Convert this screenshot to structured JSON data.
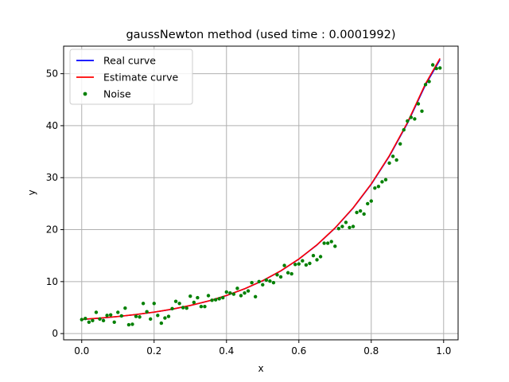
{
  "chart_data": {
    "type": "line",
    "title": "gaussNewton method (used time : 0.0001992)",
    "xlabel": "x",
    "ylabel": "y",
    "xlim": [
      -0.05,
      1.04
    ],
    "ylim": [
      -1.2,
      55.3
    ],
    "xticks": [
      0.0,
      0.2,
      0.4,
      0.6,
      0.8,
      1.0
    ],
    "xtick_labels": [
      "0.0",
      "0.2",
      "0.4",
      "0.6",
      "0.8",
      "1.0"
    ],
    "yticks": [
      0,
      10,
      20,
      30,
      40,
      50
    ],
    "ytick_labels": [
      "0",
      "10",
      "20",
      "30",
      "40",
      "50"
    ],
    "grid": true,
    "legend_position": "top-left",
    "series": [
      {
        "name": "Real curve",
        "kind": "line",
        "color": "#0000ff",
        "x": [
          0.0,
          0.05,
          0.1,
          0.15,
          0.2,
          0.25,
          0.3,
          0.35,
          0.4,
          0.45,
          0.5,
          0.55,
          0.6,
          0.65,
          0.7,
          0.75,
          0.8,
          0.85,
          0.9,
          0.95,
          0.99
        ],
        "y": [
          2.72,
          2.97,
          3.28,
          3.66,
          4.12,
          4.69,
          5.4,
          6.26,
          7.32,
          8.61,
          10.17,
          12.06,
          14.33,
          17.05,
          20.29,
          24.15,
          28.73,
          34.12,
          40.45,
          47.87,
          52.69
        ]
      },
      {
        "name": "Estimate curve",
        "kind": "line",
        "color": "#ff0000",
        "x": [
          0.0,
          0.05,
          0.1,
          0.15,
          0.2,
          0.25,
          0.3,
          0.35,
          0.4,
          0.45,
          0.5,
          0.55,
          0.6,
          0.65,
          0.7,
          0.75,
          0.8,
          0.85,
          0.9,
          0.95,
          0.99
        ],
        "y": [
          2.73,
          2.98,
          3.29,
          3.67,
          4.13,
          4.7,
          5.41,
          6.27,
          7.33,
          8.62,
          10.18,
          12.08,
          14.35,
          17.08,
          20.33,
          24.2,
          28.8,
          34.22,
          40.6,
          48.08,
          52.95
        ]
      },
      {
        "name": "Noise",
        "kind": "scatter",
        "color": "#008000",
        "x": [
          0.0,
          0.01,
          0.02,
          0.03,
          0.04,
          0.05,
          0.06,
          0.07,
          0.08,
          0.09,
          0.1,
          0.11,
          0.12,
          0.13,
          0.14,
          0.15,
          0.16,
          0.17,
          0.18,
          0.19,
          0.2,
          0.21,
          0.22,
          0.23,
          0.24,
          0.25,
          0.26,
          0.27,
          0.28,
          0.29,
          0.3,
          0.31,
          0.32,
          0.33,
          0.34,
          0.35,
          0.36,
          0.37,
          0.38,
          0.39,
          0.4,
          0.41,
          0.42,
          0.43,
          0.44,
          0.45,
          0.46,
          0.47,
          0.48,
          0.49,
          0.5,
          0.51,
          0.52,
          0.53,
          0.54,
          0.55,
          0.56,
          0.57,
          0.58,
          0.59,
          0.6,
          0.61,
          0.62,
          0.63,
          0.64,
          0.65,
          0.66,
          0.67,
          0.68,
          0.69,
          0.7,
          0.71,
          0.72,
          0.73,
          0.74,
          0.75,
          0.76,
          0.77,
          0.78,
          0.79,
          0.8,
          0.81,
          0.82,
          0.83,
          0.84,
          0.85,
          0.86,
          0.87,
          0.88,
          0.89,
          0.9,
          0.91,
          0.92,
          0.93,
          0.94,
          0.95,
          0.96,
          0.97,
          0.98,
          0.99
        ],
        "y": [
          2.7,
          2.9,
          2.2,
          2.5,
          4.1,
          2.8,
          2.5,
          3.5,
          3.6,
          2.2,
          4.1,
          3.4,
          4.9,
          1.7,
          1.8,
          3.3,
          3.2,
          5.8,
          4.2,
          2.8,
          5.8,
          3.5,
          2.0,
          3.0,
          3.3,
          4.8,
          6.2,
          5.8,
          5.0,
          4.9,
          7.2,
          6.0,
          6.9,
          5.2,
          5.2,
          7.3,
          6.4,
          6.5,
          6.7,
          6.9,
          8.0,
          7.8,
          7.6,
          8.7,
          7.3,
          7.8,
          8.2,
          9.8,
          7.1,
          10.0,
          9.4,
          10.3,
          10.1,
          9.8,
          11.3,
          10.9,
          13.1,
          11.7,
          11.5,
          13.3,
          13.4,
          14.0,
          13.2,
          13.5,
          15.0,
          14.2,
          14.8,
          17.4,
          17.4,
          17.7,
          16.8,
          20.2,
          20.6,
          21.4,
          20.4,
          20.6,
          23.3,
          23.6,
          23.0,
          25.0,
          25.5,
          28.0,
          28.3,
          29.2,
          29.6,
          32.8,
          34.1,
          33.4,
          36.5,
          39.2,
          40.9,
          41.6,
          41.3,
          44.2,
          42.8,
          47.9,
          48.5,
          51.7,
          51.0,
          51.1
        ]
      }
    ]
  }
}
